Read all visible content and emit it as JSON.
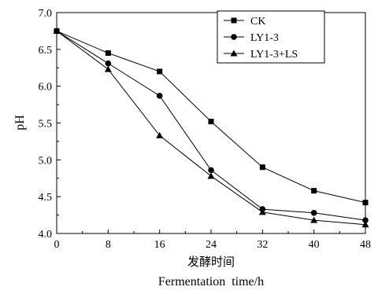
{
  "chart_data": {
    "type": "line",
    "x": [
      0,
      8,
      16,
      24,
      32,
      40,
      48
    ],
    "series": [
      {
        "name": "CK",
        "marker": "square",
        "values": [
          6.75,
          6.45,
          6.2,
          5.52,
          4.9,
          4.58,
          4.42
        ]
      },
      {
        "name": "LY1-3",
        "marker": "circle",
        "values": [
          6.75,
          6.31,
          5.87,
          4.86,
          4.33,
          4.28,
          4.18
        ]
      },
      {
        "name": "LY1-3+LS",
        "marker": "triangle",
        "values": [
          6.75,
          6.23,
          5.33,
          4.78,
          4.29,
          4.18,
          4.12
        ]
      }
    ],
    "xlabel_cn": "发酵时间",
    "xlabel": "Fermentation  time/h",
    "ylabel": "pH",
    "xlim": [
      0,
      48
    ],
    "ylim": [
      4.0,
      7.0
    ],
    "xticks": [
      "0",
      "8",
      "16",
      "24",
      "32",
      "40",
      "48"
    ],
    "yticks": [
      "4.0",
      "4.5",
      "5.0",
      "5.5",
      "6.0",
      "6.5",
      "7.0"
    ],
    "legend_position": "top-right",
    "grid": false
  }
}
